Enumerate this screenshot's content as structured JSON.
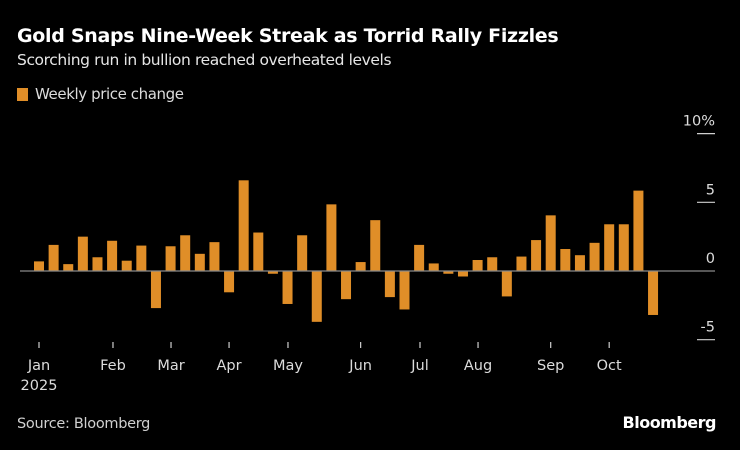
{
  "chart_data": {
    "type": "bar",
    "title": "Gold Snaps Nine-Week Streak as Torrid Rally Fizzles",
    "subtitle": "Scorching run in bullion reached overheated levels",
    "series": [
      {
        "name": "Weekly price change",
        "color": "#e08e28",
        "values": [
          0.7,
          1.9,
          0.5,
          2.5,
          1.0,
          2.2,
          0.75,
          1.85,
          -2.7,
          1.8,
          2.6,
          1.25,
          2.1,
          -1.55,
          6.6,
          2.8,
          -0.2,
          -2.4,
          2.6,
          -3.7,
          4.85,
          -2.05,
          0.65,
          3.7,
          -1.9,
          -2.8,
          1.9,
          0.55,
          -0.2,
          -0.4,
          0.8,
          1.0,
          -1.85,
          1.05,
          2.25,
          4.05,
          1.6,
          1.15,
          2.05,
          3.4,
          3.4,
          5.85,
          -3.2
        ]
      }
    ],
    "x_ticks": [
      "Jan",
      "Feb",
      "Mar",
      "Apr",
      "May",
      "Jun",
      "Jul",
      "Aug",
      "Sep",
      "Oct"
    ],
    "x_year_label": "2025",
    "y_ticks": [
      "10%",
      "5",
      "0",
      "-5"
    ],
    "y_tick_values": [
      10,
      5,
      0,
      -5
    ],
    "ylim": [
      -5,
      10
    ],
    "y_axis_side": "right",
    "grid": false,
    "legend_placement": "top-left"
  },
  "footer": {
    "source": "Source: Bloomberg",
    "brand": "Bloomberg"
  },
  "colors": {
    "background": "#000000",
    "bar": "#e08e28",
    "zero_line": "#8a8a8a"
  }
}
